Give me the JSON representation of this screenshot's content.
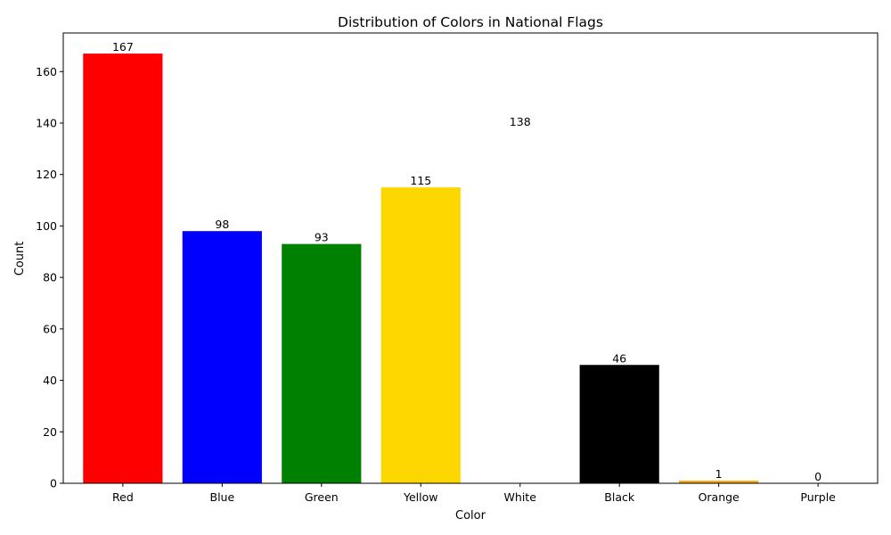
{
  "chart_data": {
    "type": "bar",
    "title": "Distribution of Colors in National Flags",
    "xlabel": "Color",
    "ylabel": "Count",
    "categories": [
      "Red",
      "Blue",
      "Green",
      "Yellow",
      "White",
      "Black",
      "Orange",
      "Purple"
    ],
    "values": [
      167,
      98,
      93,
      115,
      138,
      46,
      1,
      0
    ],
    "bar_colors": [
      "#ff0000",
      "#0000ff",
      "#008000",
      "#ffd700",
      "#ffffff",
      "#000000",
      "#ffa500",
      "#800080"
    ],
    "ylim": [
      0,
      175
    ],
    "yticks": [
      0,
      20,
      40,
      60,
      80,
      100,
      120,
      140,
      160
    ],
    "grid": false,
    "legend": "none"
  }
}
